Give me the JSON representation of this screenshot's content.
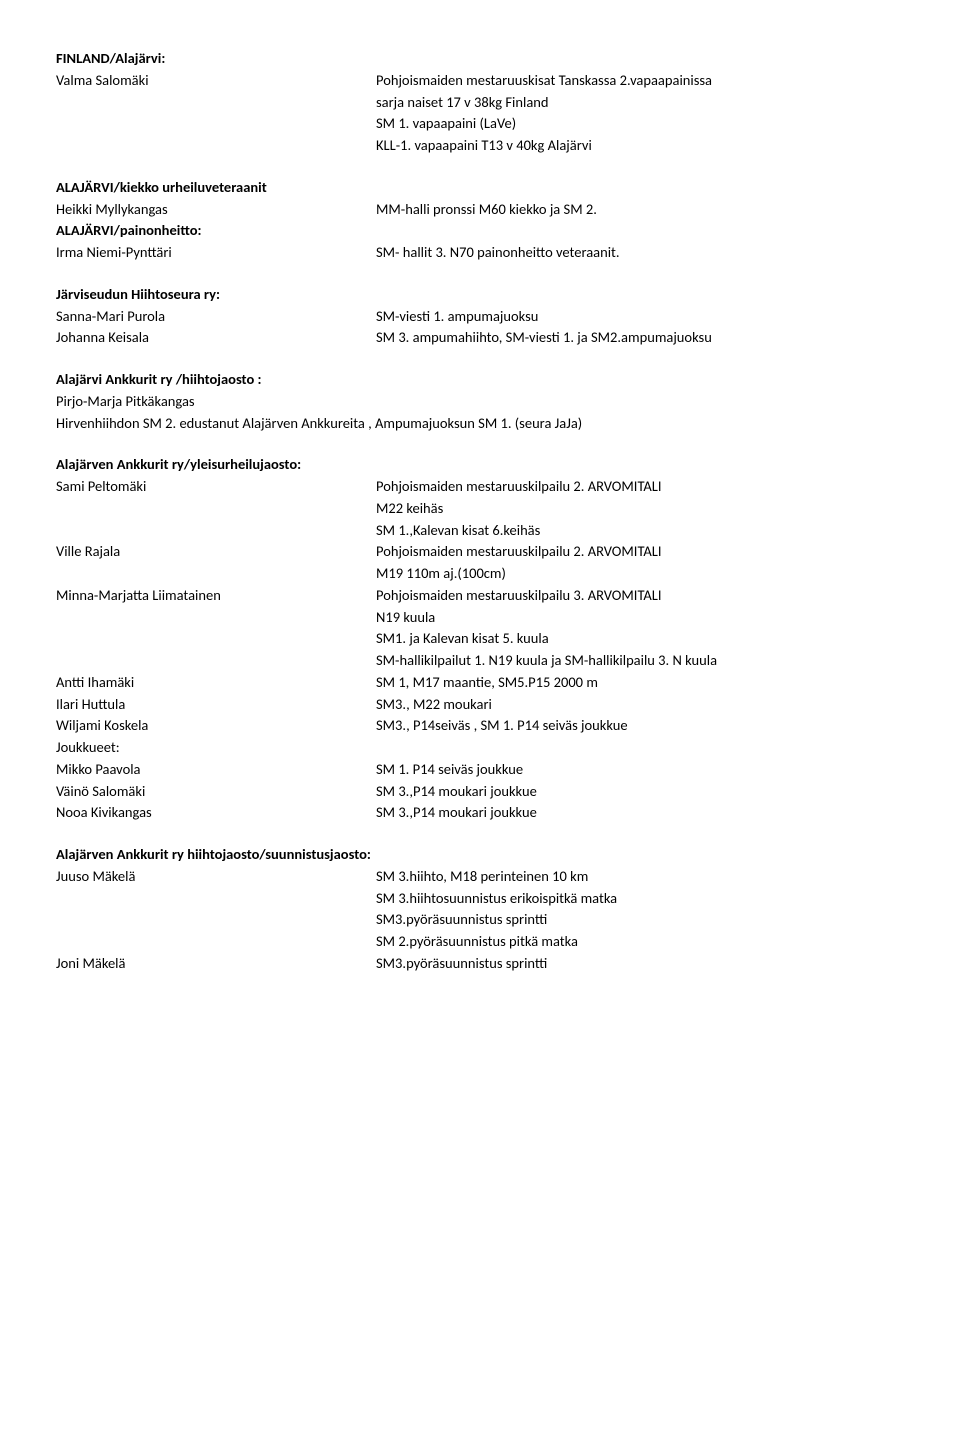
{
  "s1": {
    "heading": "FINLAND/Alajärvi:",
    "name": "Valma Salomäki",
    "lines": [
      "Pohjoismaiden mestaruuskisat Tanskassa 2.vapaapainissa",
      "sarja naiset 17 v 38kg Finland",
      "SM 1. vapaapaini (LaVe)",
      "KLL-1. vapaapaini T13 v 40kg Alajärvi"
    ]
  },
  "s2": {
    "heading": "ALAJÄRVI/kiekko urheiluveteraanit",
    "row1_name": "Heikki Myllykangas",
    "row1_val": "MM-halli pronssi M60 kiekko ja SM 2.",
    "sub2": "ALAJÄRVI/painonheitto:",
    "row2_name": "Irma Niemi-Pynttäri",
    "row2_val": "SM- hallit 3. N70 painonheitto veteraanit."
  },
  "s3": {
    "heading": "Järviseudun Hiihtoseura ry:",
    "row1_name": "Sanna-Mari Purola",
    "row1_val": "SM-viesti 1. ampumajuoksu",
    "row2_name": "Johanna Keisala",
    "row2_val": "SM 3. ampumahiihto, SM-viesti 1. ja SM2.ampumajuoksu"
  },
  "s4": {
    "heading": "Alajärvi Ankkurit ry /hiihtojaosto :",
    "line1": "Pirjo-Marja Pitkäkangas",
    "line2": "Hirvenhiihdon SM 2.  edustanut Alajärven Ankkureita , Ampumajuoksun SM 1. (seura JaJa)"
  },
  "s5": {
    "heading": "Alajärven Ankkurit ry/yleisurheilujaosto:",
    "rows": [
      {
        "name": "Sami Peltomäki",
        "lines": [
          "Pohjoismaiden mestaruuskilpailu 2. ARVOMITALI",
          "M22 keihäs",
          "SM 1.,Kalevan kisat 6.keihäs"
        ]
      },
      {
        "name": "Ville Rajala",
        "lines": [
          "Pohjoismaiden mestaruuskilpailu 2. ARVOMITALI",
          "M19 110m aj.(100cm)"
        ]
      },
      {
        "name": "Minna-Marjatta Liimatainen",
        "lines": [
          "Pohjoismaiden mestaruuskilpailu 3. ARVOMITALI",
          "N19 kuula",
          "SM1. ja Kalevan kisat 5. kuula",
          "SM-hallikilpailut 1. N19 kuula ja SM-hallikilpailu 3. N kuula"
        ]
      },
      {
        "name": "Antti Ihamäki",
        "lines": [
          "SM 1, M17 maantie, SM5.P15 2000 m"
        ]
      },
      {
        "name": "Ilari Huttula",
        "lines": [
          "SM3., M22 moukari"
        ]
      },
      {
        "name": "Wiljami Koskela",
        "lines": [
          " SM3., P14seiväs , SM 1. P14 seiväs joukkue"
        ]
      }
    ],
    "teams_label": "Joukkueet:",
    "teams": [
      {
        "name": "Mikko Paavola",
        "val": "SM 1. P14 seiväs joukkue"
      },
      {
        "name": "Väinö Salomäki",
        "val": "SM 3.,P14 moukari joukkue"
      },
      {
        "name": "Nooa Kivikangas",
        "val": "SM 3.,P14 moukari joukkue"
      }
    ]
  },
  "s6": {
    "heading": "Alajärven Ankkurit ry hiihtojaosto/suunnistusjaosto:",
    "rows": [
      {
        "name": "Juuso Mäkelä",
        "lines": [
          "SM 3.hiihto, M18 perinteinen 10 km",
          "SM 3.hiihtosuunnistus erikoispitkä matka",
          "SM3.pyöräsuunnistus sprintti",
          "SM 2.pyöräsuunnistus pitkä matka"
        ]
      },
      {
        "name": "Joni Mäkelä",
        "lines": [
          "SM3.pyöräsuunnistus sprintti"
        ]
      }
    ]
  }
}
